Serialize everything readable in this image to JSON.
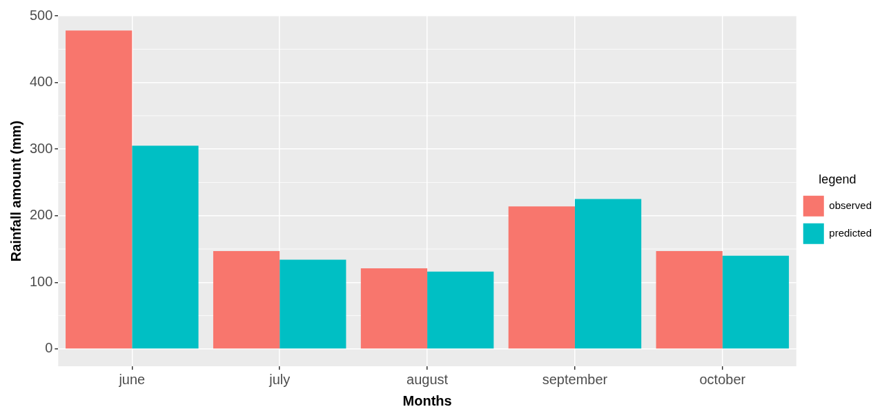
{
  "chart_data": {
    "type": "bar",
    "xlabel": "Months",
    "ylabel": "Rainfall amount (mm)",
    "legend_title": "legend",
    "categories": [
      "june",
      "july",
      "august",
      "september",
      "october"
    ],
    "series": [
      {
        "name": "observed",
        "color": "#f8766d",
        "values": [
          478,
          147,
          121,
          214,
          147
        ]
      },
      {
        "name": "predicted",
        "color": "#00bfc4",
        "values": [
          305,
          134,
          116,
          225,
          140
        ]
      }
    ],
    "ylim": [
      -26,
      500
    ],
    "yticks": [
      0,
      100,
      200,
      300,
      400,
      500
    ],
    "grid": true,
    "legend": "right"
  }
}
